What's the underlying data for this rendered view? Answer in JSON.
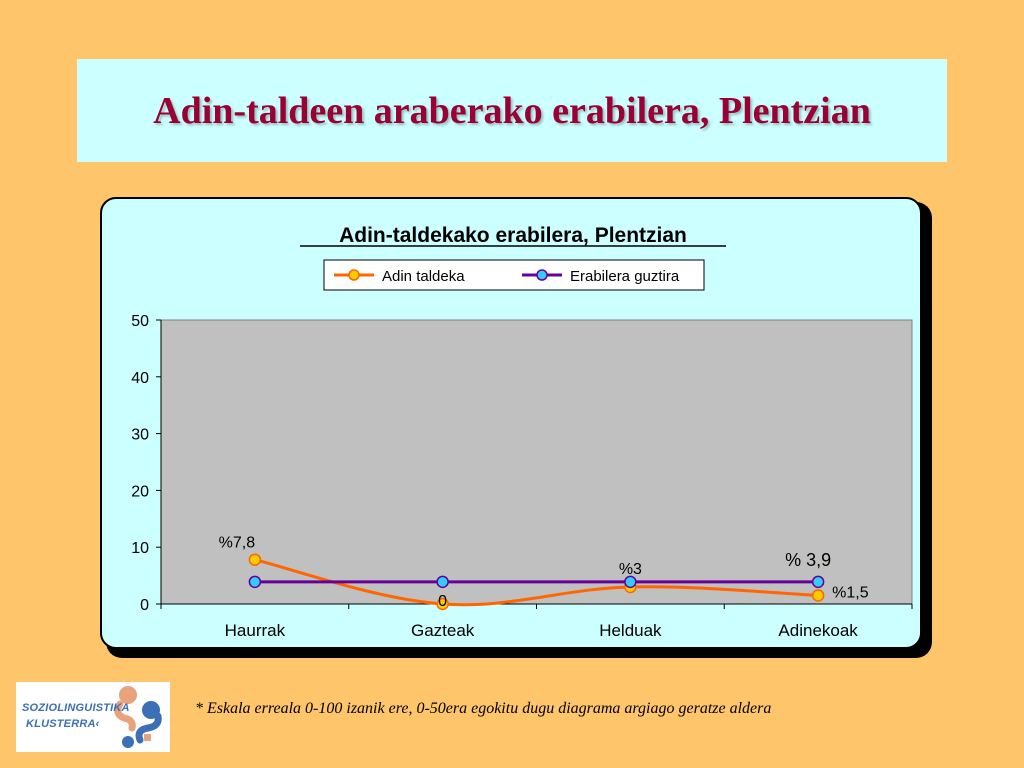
{
  "slide": {
    "title": "Adin-taldeen araberako erabilera, Plentzian",
    "footnote": "* Eskala erreala 0-100 izanik ere, 0-50era egokitu dugu diagrama argiago geratze aldera"
  },
  "logo": {
    "line1": "SOZIOLINGUISTIKA",
    "line2": "KLUSTERRA",
    "line2_suffix": "‹"
  },
  "chart_data": {
    "type": "line",
    "title": "Adin-taldekako erabilera, Plentzian",
    "categories": [
      "Haurrak",
      "Gazteak",
      "Helduak",
      "Adinekoak"
    ],
    "ylim": [
      0,
      50
    ],
    "yticks": [
      "0",
      "10",
      "20",
      "30",
      "40",
      "50"
    ],
    "legend_position": "top",
    "series": [
      {
        "name": "Adin taldeka",
        "values": [
          7.8,
          0,
          3,
          1.5
        ],
        "labels": [
          "%7,8",
          "0",
          "%3",
          "%1,5"
        ],
        "color": "#FF6600",
        "marker_color": "#FFCC00"
      },
      {
        "name": "Erabilera guztira",
        "values": [
          3.9,
          3.9,
          3.9,
          3.9
        ],
        "labels": [
          "",
          "",
          "",
          "% 3,9"
        ],
        "color": "#660099",
        "marker_color": "#33CCFF"
      }
    ],
    "plot_background": "#C0C0C0"
  }
}
